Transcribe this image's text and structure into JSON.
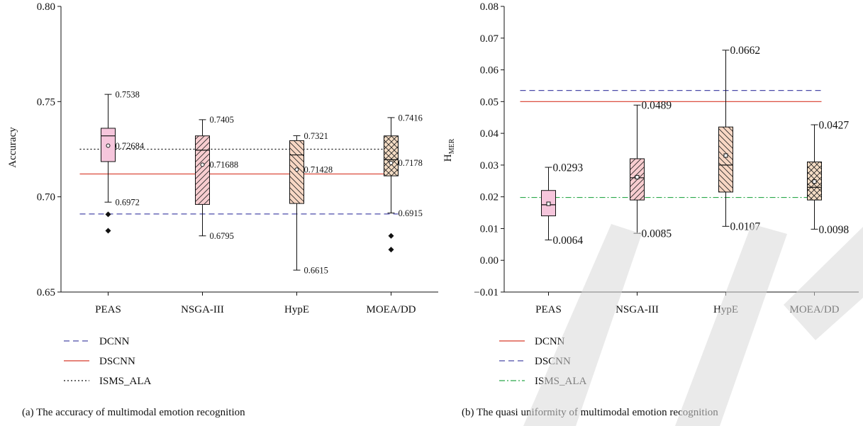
{
  "colors": {
    "peas_fill": "#f6c6dc",
    "nsga_fill": "#f8cdd0",
    "hype_fill": "#f8d7c4",
    "moea_fill": "#f4dcc4",
    "dcnn_dash": "#4a4aa8",
    "dscnn_solid": "#d83a2a",
    "isms_dotted": "#111111",
    "isms_dashdot": "#2aa84a",
    "watermark": "#d9d9d9"
  },
  "chart_data": [
    {
      "type": "box",
      "caption": "(a) The accuracy of multimodal emotion recognition",
      "ylabel": "Accuracy",
      "ylim": [
        0.65,
        0.8
      ],
      "yticks": [
        "0.65",
        "0.70",
        "0.75",
        "0.80"
      ],
      "ytick_values": [
        0.65,
        0.7,
        0.75,
        0.8
      ],
      "categories": [
        "PEAS",
        "NSGA-III",
        "HypE",
        "MOEA/DD"
      ],
      "boxes": [
        {
          "name": "PEAS",
          "whisker_high": 0.7538,
          "q3": 0.736,
          "median": 0.732,
          "q1": 0.7185,
          "whisker_low": 0.6972,
          "mean": 0.72684,
          "outliers": [
            0.6908,
            0.6822
          ],
          "hatch": "none",
          "labels": {
            "high": "0.7538",
            "mean": "0.72684",
            "low": "0.6972"
          }
        },
        {
          "name": "NSGA-III",
          "whisker_high": 0.7405,
          "q3": 0.732,
          "median": 0.7245,
          "q1": 0.696,
          "whisker_low": 0.6795,
          "mean": 0.71688,
          "outliers": [],
          "hatch": "diag",
          "labels": {
            "high": "0.7405",
            "mean": "0.71688",
            "low": "0.6795"
          }
        },
        {
          "name": "HypE",
          "whisker_high": 0.7321,
          "q3": 0.7295,
          "median": 0.722,
          "q1": 0.6965,
          "whisker_low": 0.6615,
          "mean": 0.71428,
          "outliers": [],
          "hatch": "diag-back",
          "labels": {
            "high": "0.7321",
            "mean": "0.71428",
            "low": "0.6615"
          }
        },
        {
          "name": "MOEA/DD",
          "whisker_high": 0.7416,
          "q3": 0.732,
          "median": 0.7195,
          "q1": 0.711,
          "whisker_low": 0.6915,
          "mean": 0.7178,
          "outliers": [
            0.6795,
            0.6723
          ],
          "hatch": "cross",
          "labels": {
            "high": "0.7416",
            "mean": "0.7178",
            "low": "0.6915"
          }
        }
      ],
      "reference_lines": [
        {
          "name": "DCNN",
          "value": 0.691,
          "style": "dashed",
          "color": "#4a4aa8"
        },
        {
          "name": "DSCNN",
          "value": 0.712,
          "style": "solid",
          "color": "#d83a2a"
        },
        {
          "name": "ISMS_ALA",
          "value": 0.725,
          "style": "dotted",
          "color": "#111111"
        }
      ]
    },
    {
      "type": "box",
      "caption": "(b) The quasi uniformity of multimodal emotion recognition",
      "ylabel_main": "H",
      "ylabel_sub": "MER",
      "ylim": [
        -0.01,
        0.08
      ],
      "yticks": [
        "−0.01",
        "0.00",
        "0.01",
        "0.02",
        "0.03",
        "0.04",
        "0.05",
        "0.06",
        "0.07",
        "0.08"
      ],
      "ytick_values": [
        -0.01,
        0.0,
        0.01,
        0.02,
        0.03,
        0.04,
        0.05,
        0.06,
        0.07,
        0.08
      ],
      "categories": [
        "PEAS",
        "NSGA-III",
        "HypE",
        "MOEA/DD"
      ],
      "boxes": [
        {
          "name": "PEAS",
          "whisker_high": 0.0293,
          "q3": 0.022,
          "median": 0.0175,
          "q1": 0.014,
          "whisker_low": 0.0064,
          "mean": 0.0178,
          "outliers": [],
          "hatch": "none",
          "labels": {
            "high": "0.0293",
            "low": "0.0064"
          }
        },
        {
          "name": "NSGA-III",
          "whisker_high": 0.0489,
          "q3": 0.032,
          "median": 0.026,
          "q1": 0.019,
          "whisker_low": 0.0085,
          "mean": 0.0262,
          "outliers": [],
          "hatch": "diag",
          "labels": {
            "high": "0.0489",
            "low": "0.0085"
          }
        },
        {
          "name": "HypE",
          "whisker_high": 0.0662,
          "q3": 0.042,
          "median": 0.03,
          "q1": 0.0215,
          "whisker_low": 0.0107,
          "mean": 0.033,
          "outliers": [],
          "hatch": "diag-back",
          "labels": {
            "high": "0.0662",
            "low": "0.0107"
          }
        },
        {
          "name": "MOEA/DD",
          "whisker_high": 0.0427,
          "q3": 0.031,
          "median": 0.023,
          "q1": 0.019,
          "whisker_low": 0.0098,
          "mean": 0.0248,
          "outliers": [],
          "hatch": "cross",
          "labels": {
            "high": "0.0427",
            "low": "0.0098"
          }
        }
      ],
      "reference_lines": [
        {
          "name": "DCNN",
          "value": 0.05,
          "style": "solid",
          "color": "#d83a2a"
        },
        {
          "name": "DSCNN",
          "value": 0.0535,
          "style": "dashed",
          "color": "#4a4aa8"
        },
        {
          "name": "ISMS_ALA",
          "value": 0.0198,
          "style": "dashdot",
          "color": "#2aa84a"
        }
      ]
    }
  ]
}
